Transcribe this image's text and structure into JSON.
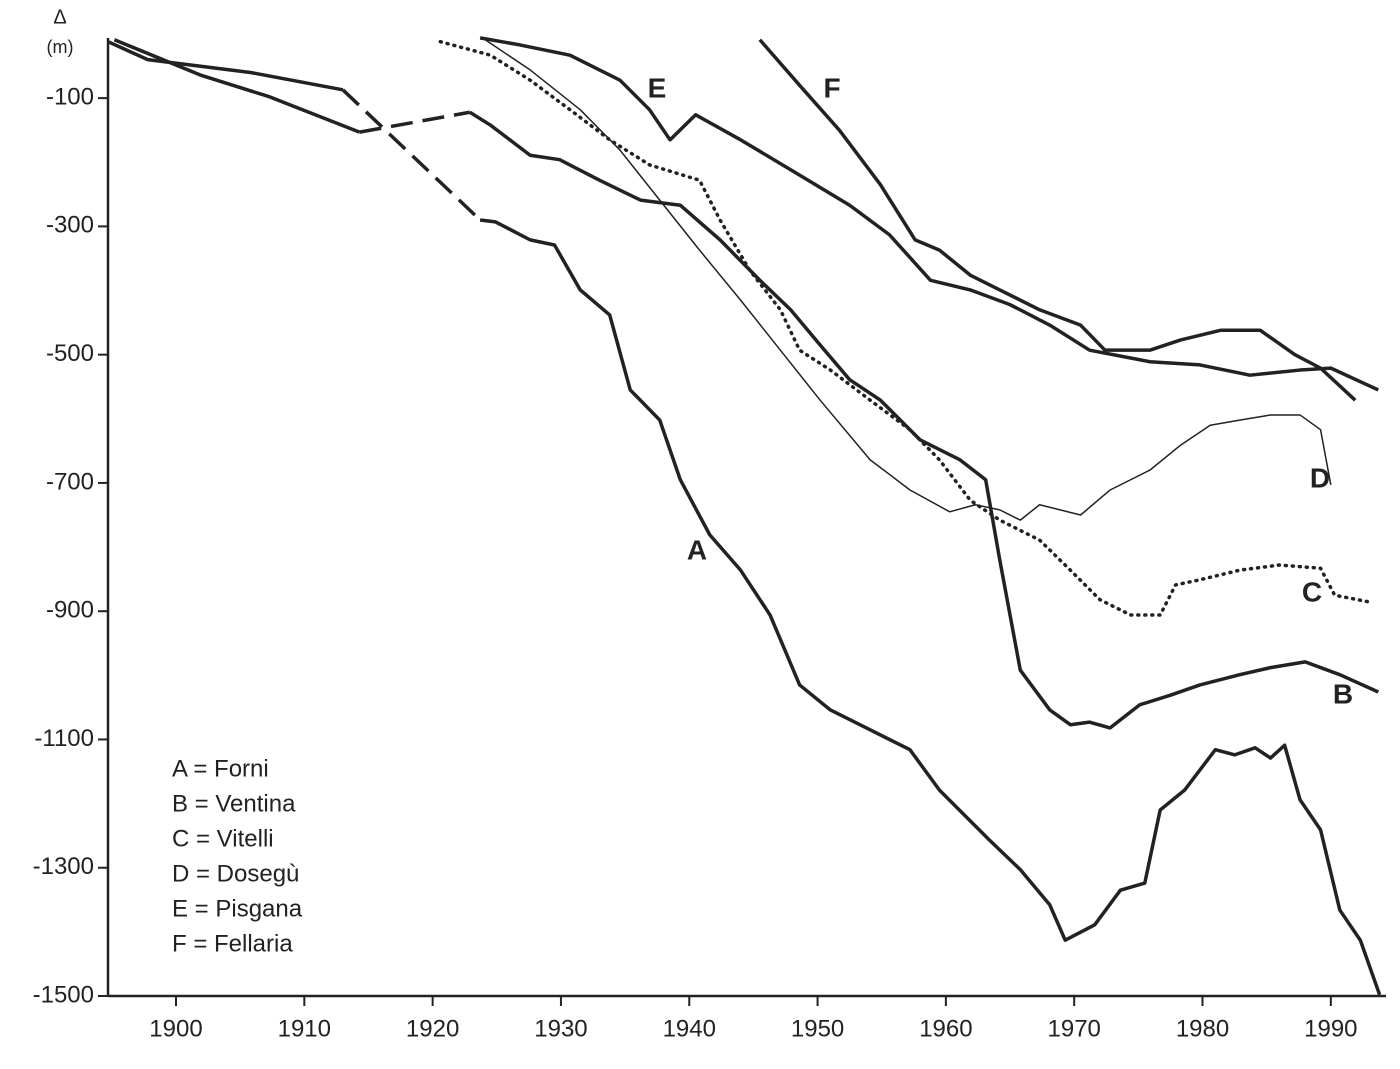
{
  "chart_data": {
    "type": "line",
    "y_label": "Δ",
    "y_unit": "(m)",
    "xlim": [
      1894.7,
      1994.3
    ],
    "ylim": [
      -1500,
      0
    ],
    "xticks": [
      1900,
      1910,
      1920,
      1930,
      1940,
      1950,
      1960,
      1970,
      1980,
      1990
    ],
    "yticks": [
      -100,
      -300,
      -500,
      -700,
      -900,
      -1100,
      -1300,
      -1500
    ],
    "color": "#222222",
    "series": [
      {
        "name": "A = Forni",
        "label": "A",
        "style": "thick",
        "dashed_between": [
          1913.0,
          1923.7
        ],
        "x": [
          1894.7,
          1897.8,
          1905.8,
          1913.0,
          1923.7,
          1924.9,
          1927.6,
          1929.5,
          1931.5,
          1933.8,
          1935.4,
          1937.7,
          1939.3,
          1941.6,
          1944.0,
          1946.3,
          1948.6,
          1951.0,
          1953.3,
          1957.2,
          1959.5,
          1963.4,
          1965.8,
          1968.1,
          1969.3,
          1971.6,
          1973.6,
          1975.5,
          1976.7,
          1978.6,
          1981.0,
          1982.5,
          1984.1,
          1985.3,
          1986.4,
          1987.6,
          1989.2,
          1990.7,
          1992.3,
          1993.8
        ],
        "values": [
          -12,
          -40,
          -60,
          -87,
          -290,
          -293,
          -321,
          -329,
          -399,
          -438,
          -555,
          -602,
          -695,
          -781,
          -836,
          -906,
          -1015,
          -1054,
          -1077,
          -1116,
          -1179,
          -1257,
          -1303,
          -1358,
          -1413,
          -1389,
          -1335,
          -1324,
          -1210,
          -1179,
          -1116,
          -1124,
          -1113,
          -1129,
          -1109,
          -1194,
          -1241,
          -1366,
          -1413,
          -1498
        ]
      },
      {
        "name": "B = Ventina",
        "label": "B",
        "style": "thick",
        "dashed_between": [
          1914.3,
          1922.9
        ],
        "x": [
          1895.2,
          1901.9,
          1907.3,
          1914.3,
          1922.9,
          1924.5,
          1927.6,
          1929.9,
          1933.0,
          1936.2,
          1939.3,
          1942.4,
          1945.5,
          1947.9,
          1950.2,
          1952.5,
          1954.9,
          1958.0,
          1961.1,
          1963.1,
          1964.2,
          1965.8,
          1968.1,
          1969.7,
          1971.2,
          1972.8,
          1975.1,
          1977.5,
          1979.8,
          1982.9,
          1985.3,
          1988.0,
          1990.7,
          1993.7
        ],
        "values": [
          -9,
          -64,
          -98,
          -153,
          -122,
          -142,
          -189,
          -196,
          -228,
          -259,
          -267,
          -321,
          -384,
          -430,
          -485,
          -539,
          -571,
          -633,
          -664,
          -695,
          -820,
          -992,
          -1054,
          -1077,
          -1073,
          -1082,
          -1046,
          -1031,
          -1015,
          -999,
          -988,
          -979,
          -999,
          -1026
        ]
      },
      {
        "name": "C = Vitelli",
        "label": "C",
        "style": "dotted",
        "x": [
          1920.6,
          1924.5,
          1927.6,
          1930.7,
          1933.8,
          1936.9,
          1940.8,
          1942.4,
          1944.7,
          1947.1,
          1948.6,
          1951.0,
          1954.1,
          1957.2,
          1959.5,
          1961.9,
          1964.2,
          1967.3,
          1969.7,
          1972.0,
          1974.4,
          1976.7,
          1977.9,
          1979.8,
          1982.9,
          1986.0,
          1989.2,
          1990.3,
          1993.1
        ],
        "values": [
          -12,
          -33,
          -72,
          -118,
          -165,
          -204,
          -228,
          -290,
          -368,
          -430,
          -493,
          -524,
          -571,
          -617,
          -664,
          -727,
          -758,
          -789,
          -836,
          -882,
          -906,
          -906,
          -859,
          -851,
          -836,
          -828,
          -833,
          -875,
          -886
        ]
      },
      {
        "name": "D = Dosegù",
        "label": "D",
        "style": "thin",
        "x": [
          1924.1,
          1927.6,
          1931.5,
          1934.6,
          1937.7,
          1940.8,
          1944.0,
          1947.1,
          1950.2,
          1954.1,
          1957.2,
          1960.3,
          1962.3,
          1964.2,
          1965.8,
          1967.3,
          1970.5,
          1972.8,
          1975.9,
          1978.3,
          1980.6,
          1982.9,
          1985.3,
          1987.6,
          1989.2,
          1990.0
        ],
        "values": [
          -9,
          -56,
          -118,
          -181,
          -259,
          -337,
          -415,
          -493,
          -571,
          -664,
          -711,
          -745,
          -734,
          -742,
          -758,
          -734,
          -750,
          -711,
          -680,
          -641,
          -610,
          -602,
          -594,
          -594,
          -617,
          -703
        ]
      },
      {
        "name": "E = Pisgana",
        "label": "E",
        "style": "thick",
        "x": [
          1923.7,
          1926.8,
          1930.7,
          1934.6,
          1936.9,
          1938.5,
          1940.5,
          1944.0,
          1948.6,
          1952.5,
          1955.6,
          1958.8,
          1961.9,
          1965.0,
          1968.1,
          1971.2,
          1975.9,
          1979.8,
          1983.7,
          1987.6,
          1990.0,
          1993.7
        ],
        "values": [
          -6,
          -17,
          -33,
          -72,
          -118,
          -165,
          -126,
          -165,
          -220,
          -267,
          -313,
          -384,
          -399,
          -422,
          -454,
          -493,
          -511,
          -516,
          -532,
          -524,
          -521,
          -555
        ]
      },
      {
        "name": "F = Fellaria",
        "label": "F",
        "style": "thick",
        "x": [
          1945.5,
          1948.6,
          1951.7,
          1954.9,
          1957.6,
          1959.5,
          1961.9,
          1964.2,
          1967.3,
          1970.5,
          1972.4,
          1975.9,
          1978.3,
          1981.4,
          1984.5,
          1987.2,
          1989.2,
          1991.9
        ],
        "values": [
          -9,
          -80,
          -150,
          -235,
          -321,
          -337,
          -376,
          -399,
          -430,
          -454,
          -493,
          -493,
          -477,
          -462,
          -462,
          -500,
          -521,
          -571
        ]
      }
    ]
  }
}
